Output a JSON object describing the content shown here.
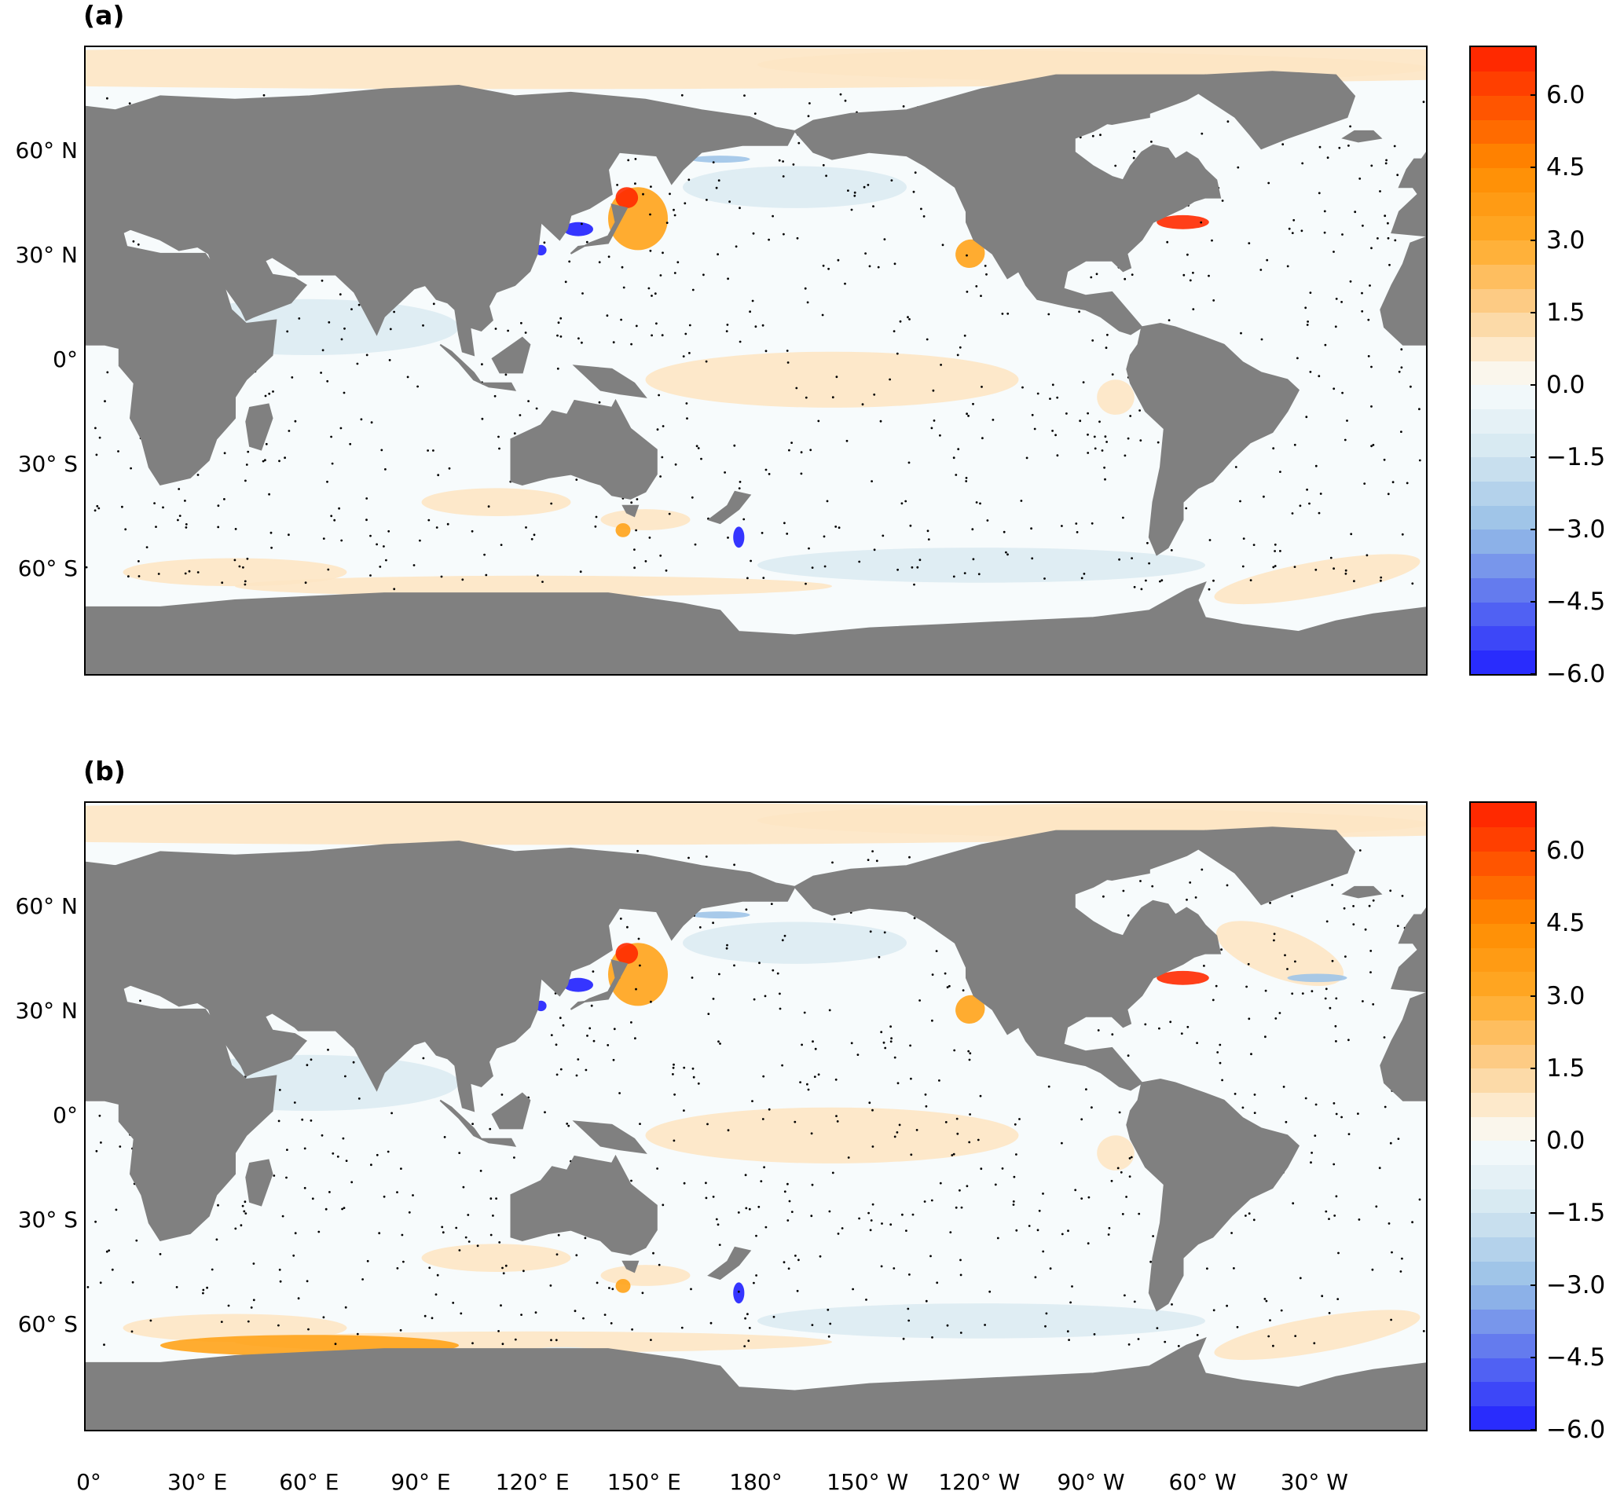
{
  "panels": [
    {
      "label": "(a)"
    },
    {
      "label": "(b)"
    }
  ],
  "latitude_labels": [
    "60° N",
    "30° N",
    "0°",
    "30° S",
    "60° S"
  ],
  "longitude_labels": [
    "0°",
    "30° E",
    "60° E",
    "90° E",
    "120° E",
    "150° E",
    "180°",
    "150° W",
    "120° W",
    "90° W",
    "60° W",
    "30° W"
  ],
  "colorbar": {
    "ticks": [
      "6.0",
      "4.5",
      "3.0",
      "1.5",
      "0.0",
      "−1.5",
      "−3.0",
      "−4.5",
      "−6.0"
    ],
    "min": -6.0,
    "max": 7.0,
    "colors": {
      "land": "#808080",
      "strong_positive": "#ff2a00",
      "positive": "#ffa31a",
      "weak_positive": "#fde6c4",
      "neutral": "#f7fbfc",
      "weak_negative": "#dcebf2",
      "negative": "#9fc4e8",
      "strong_negative": "#1f1fff"
    }
  },
  "chart_data": [
    {
      "type": "heatmap",
      "title": "(a)",
      "xlabel": "",
      "ylabel": "",
      "x_ticks": [
        "0°",
        "30° E",
        "60° E",
        "90° E",
        "120° E",
        "150° E",
        "180°",
        "150° W",
        "120° W",
        "90° W",
        "60° W",
        "30° W"
      ],
      "y_ticks": [
        "60° N",
        "30° N",
        "0°",
        "30° S",
        "60° S"
      ],
      "color_range": [
        -6.0,
        7.0
      ],
      "colorbar_ticks": [
        6.0,
        4.5,
        3.0,
        1.5,
        0.0,
        -1.5,
        -3.0,
        -4.5,
        -6.0
      ]
    },
    {
      "type": "heatmap",
      "title": "(b)",
      "xlabel": "",
      "ylabel": "",
      "x_ticks": [
        "0°",
        "30° E",
        "60° E",
        "90° E",
        "120° E",
        "150° E",
        "180°",
        "150° W",
        "120° W",
        "90° W",
        "60° W",
        "30° W"
      ],
      "y_ticks": [
        "60° N",
        "30° N",
        "0°",
        "30° S",
        "60° S"
      ],
      "color_range": [
        -6.0,
        7.0
      ],
      "colorbar_ticks": [
        6.0,
        4.5,
        3.0,
        1.5,
        0.0,
        -1.5,
        -3.0,
        -4.5,
        -6.0
      ]
    }
  ]
}
